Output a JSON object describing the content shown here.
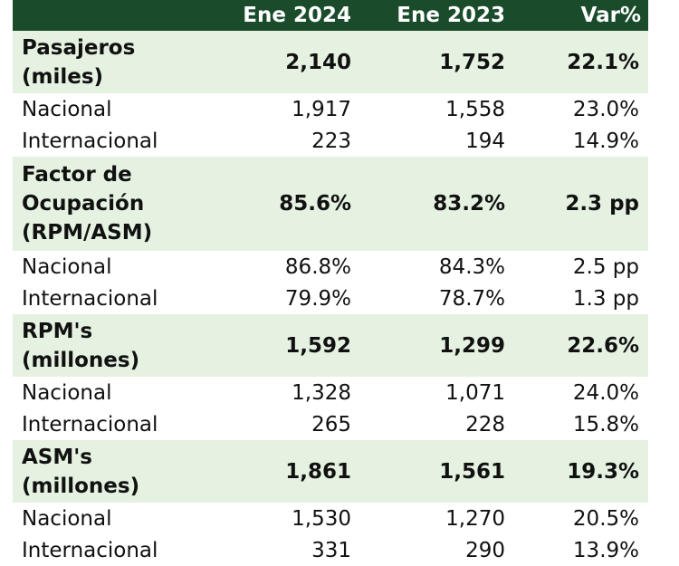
{
  "header": {
    "col1": "Ene 2024",
    "col2": "Ene 2023",
    "col3": "Var%"
  },
  "sections": [
    {
      "label": "Pasajeros (miles)",
      "values": [
        "2,140",
        "1,752",
        "22.1%"
      ],
      "rows": [
        {
          "label": "Nacional",
          "values": [
            "1,917",
            "1,558",
            "23.0%"
          ]
        },
        {
          "label": "Internacional",
          "values": [
            "223",
            "194",
            "14.9%"
          ]
        }
      ]
    },
    {
      "label": "Factor de Ocupación (RPM/ASM)",
      "values": [
        "85.6%",
        "83.2%",
        "2.3 pp"
      ],
      "rows": [
        {
          "label": "Nacional",
          "values": [
            "86.8%",
            "84.3%",
            "2.5 pp"
          ]
        },
        {
          "label": "Internacional",
          "values": [
            "79.9%",
            "78.7%",
            "1.3 pp"
          ]
        }
      ]
    },
    {
      "label": "RPM's (millones)",
      "values": [
        "1,592",
        "1,299",
        "22.6%"
      ],
      "rows": [
        {
          "label": "Nacional",
          "values": [
            "1,328",
            "1,071",
            "24.0%"
          ]
        },
        {
          "label": "Internacional",
          "values": [
            "265",
            "228",
            "15.8%"
          ]
        }
      ]
    },
    {
      "label": "ASM's (millones)",
      "values": [
        "1,861",
        "1,561",
        "19.3%"
      ],
      "rows": [
        {
          "label": "Nacional",
          "values": [
            "1,530",
            "1,270",
            "20.5%"
          ]
        },
        {
          "label": "Internacional",
          "values": [
            "331",
            "290",
            "13.9%"
          ]
        }
      ]
    }
  ]
}
